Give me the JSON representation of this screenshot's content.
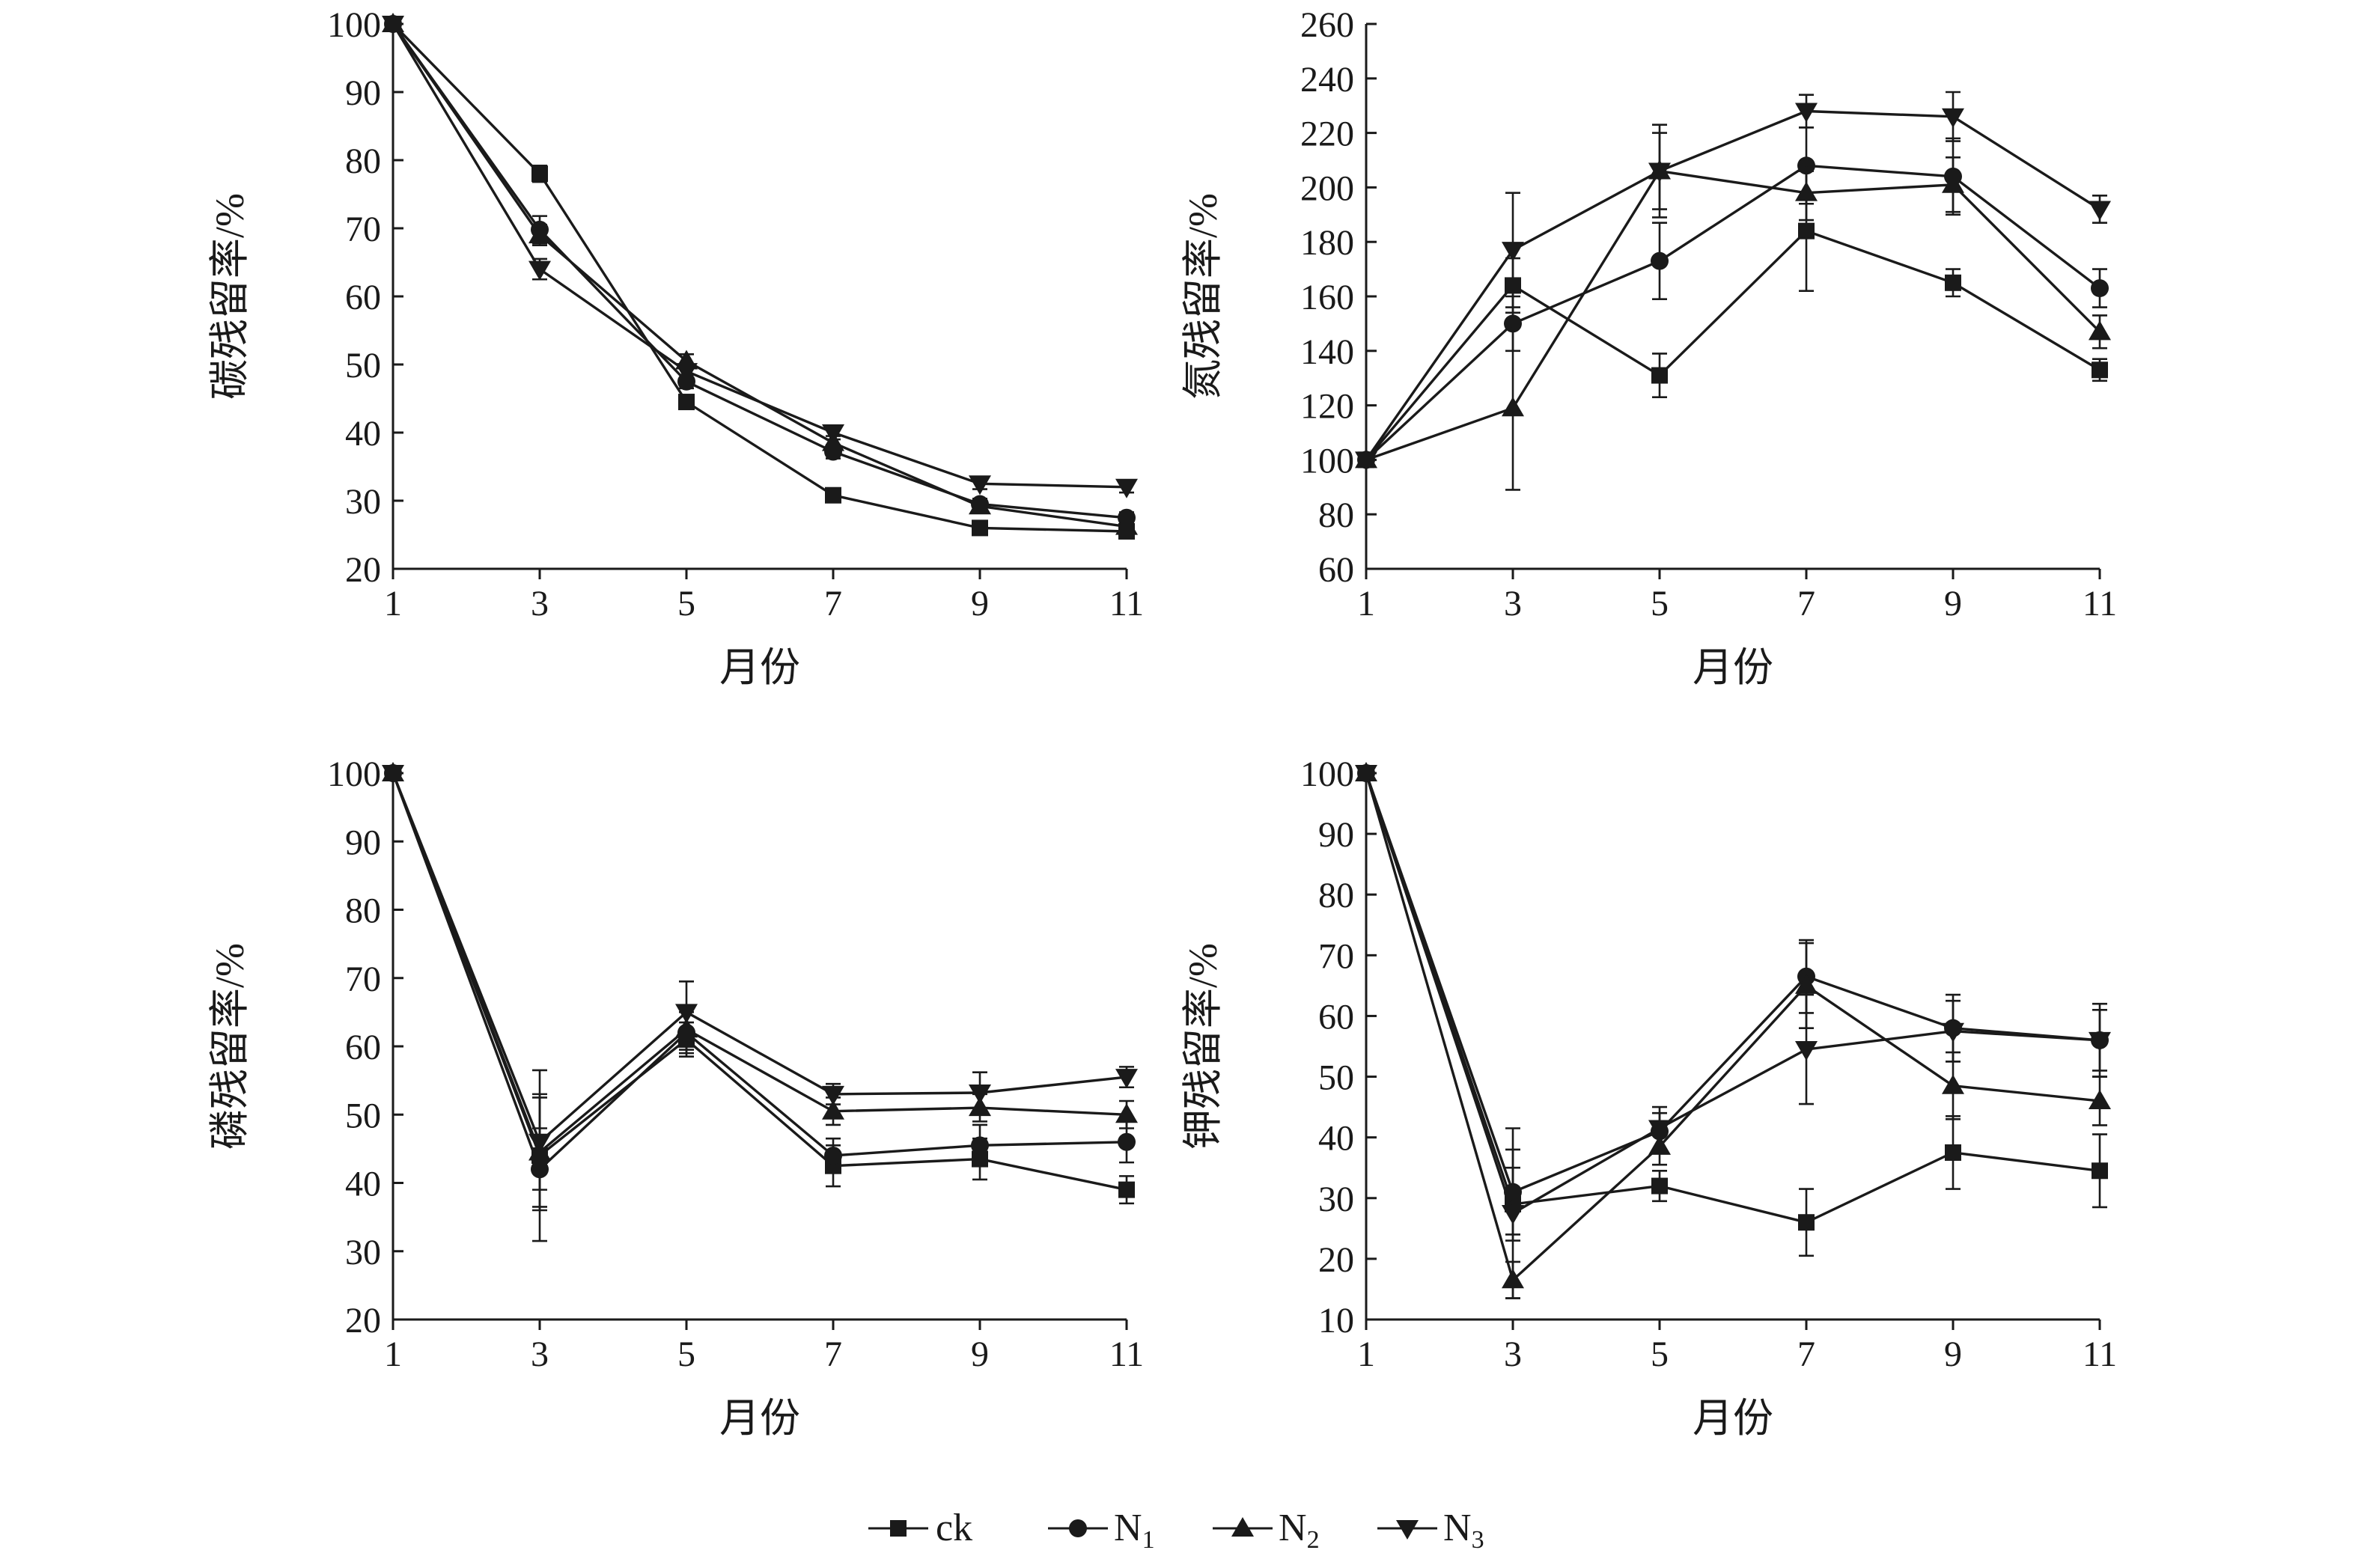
{
  "figure": {
    "legend": {
      "items": [
        {
          "label": "ck",
          "sub": "",
          "marker": "square"
        },
        {
          "label": "N",
          "sub": "1",
          "marker": "circle"
        },
        {
          "label": "N",
          "sub": "2",
          "marker": "triangle-up"
        },
        {
          "label": "N",
          "sub": "3",
          "marker": "triangle-down"
        }
      ]
    },
    "colors": {
      "ink": "#1a1a1a",
      "background": "#ffffff"
    }
  },
  "chart_data": [
    {
      "type": "line",
      "xlabel": "月份",
      "ylabel": "碳残留率/%",
      "x": [
        1,
        3,
        5,
        7,
        9,
        11
      ],
      "xticks": [
        1,
        3,
        5,
        7,
        9,
        11
      ],
      "xlim": [
        1,
        11
      ],
      "ylim": [
        20,
        100
      ],
      "yticks": [
        20,
        30,
        40,
        50,
        60,
        70,
        80,
        90,
        100
      ],
      "grid": false,
      "series": [
        {
          "name": "ck",
          "marker": "square",
          "values": [
            100,
            78,
            44.5,
            30.8,
            26,
            25.5
          ],
          "errors": [
            0,
            1.2,
            1.0,
            0.8,
            0.8,
            0.8
          ]
        },
        {
          "name": "N1",
          "marker": "circle",
          "values": [
            100,
            69.8,
            47.5,
            37.2,
            29.5,
            27.5
          ],
          "errors": [
            0,
            2.0,
            1.0,
            1.0,
            0.8,
            0.8
          ]
        },
        {
          "name": "N2",
          "marker": "triangle-up",
          "values": [
            100,
            69,
            50.5,
            38.5,
            29.2,
            26.2
          ],
          "errors": [
            0,
            1.5,
            1.0,
            1.0,
            0.8,
            0.8
          ]
        },
        {
          "name": "N3",
          "marker": "triangle-down",
          "values": [
            100,
            64,
            49,
            40,
            32.5,
            32
          ],
          "errors": [
            0,
            1.5,
            1.0,
            1.0,
            0.8,
            0.8
          ]
        }
      ]
    },
    {
      "type": "line",
      "xlabel": "月份",
      "ylabel": "氮残留率/%",
      "x": [
        1,
        3,
        5,
        7,
        9,
        11
      ],
      "xticks": [
        1,
        3,
        5,
        7,
        9,
        11
      ],
      "xlim": [
        1,
        11
      ],
      "ylim": [
        60,
        260
      ],
      "yticks": [
        60,
        80,
        100,
        120,
        140,
        160,
        180,
        200,
        220,
        240,
        260
      ],
      "grid": false,
      "series": [
        {
          "name": "ck",
          "marker": "square",
          "values": [
            100,
            164,
            131,
            184,
            165,
            133
          ],
          "errors": [
            0,
            10,
            8,
            22,
            5,
            4
          ]
        },
        {
          "name": "N1",
          "marker": "circle",
          "values": [
            100,
            150,
            173,
            208,
            204,
            163
          ],
          "errors": [
            0,
            10,
            14,
            14,
            14,
            7
          ]
        },
        {
          "name": "N2",
          "marker": "triangle-up",
          "values": [
            100,
            119,
            206,
            198,
            201,
            147
          ],
          "errors": [
            0,
            30,
            14,
            10,
            10,
            6
          ]
        },
        {
          "name": "N3",
          "marker": "triangle-down",
          "values": [
            100,
            177,
            206,
            228,
            226,
            192
          ],
          "errors": [
            0,
            21,
            17,
            6,
            9,
            5
          ]
        }
      ]
    },
    {
      "type": "line",
      "xlabel": "月份",
      "ylabel": "磷残留率/%",
      "x": [
        1,
        3,
        5,
        7,
        9,
        11
      ],
      "xticks": [
        1,
        3,
        5,
        7,
        9,
        11
      ],
      "xlim": [
        1,
        11
      ],
      "ylim": [
        20,
        100
      ],
      "yticks": [
        20,
        30,
        40,
        50,
        60,
        70,
        80,
        90,
        100
      ],
      "grid": false,
      "series": [
        {
          "name": "ck",
          "marker": "square",
          "values": [
            100,
            44,
            61,
            42.5,
            43.5,
            39
          ],
          "errors": [
            0,
            12.5,
            2.5,
            3.0,
            3.0,
            2.0
          ]
        },
        {
          "name": "N1",
          "marker": "circle",
          "values": [
            100,
            42,
            62,
            44,
            45.5,
            46
          ],
          "errors": [
            0,
            6.0,
            3.0,
            2.5,
            3.0,
            3.0
          ]
        },
        {
          "name": "N2",
          "marker": "triangle-up",
          "values": [
            100,
            44.5,
            62.5,
            50.5,
            51,
            50
          ],
          "errors": [
            0,
            8.0,
            3.0,
            2.0,
            2.0,
            2.0
          ]
        },
        {
          "name": "N3",
          "marker": "triangle-down",
          "values": [
            100,
            46,
            65,
            53,
            53.2,
            55.5
          ],
          "errors": [
            0,
            7.0,
            4.5,
            1.5,
            3.0,
            1.5
          ]
        }
      ]
    },
    {
      "type": "line",
      "xlabel": "月份",
      "ylabel": "钾残留率/%",
      "x": [
        1,
        3,
        5,
        7,
        9,
        11
      ],
      "xticks": [
        1,
        3,
        5,
        7,
        9,
        11
      ],
      "xlim": [
        1,
        11
      ],
      "ylim": [
        10,
        100
      ],
      "yticks": [
        10,
        20,
        30,
        40,
        50,
        60,
        70,
        80,
        90,
        100
      ],
      "grid": false,
      "series": [
        {
          "name": "ck",
          "marker": "square",
          "values": [
            100,
            29,
            32,
            26,
            37.5,
            34.5
          ],
          "errors": [
            0,
            6.0,
            2.5,
            5.5,
            6.0,
            6.0
          ]
        },
        {
          "name": "N1",
          "marker": "circle",
          "values": [
            100,
            31,
            41,
            66.5,
            58,
            56
          ],
          "errors": [
            0,
            7.0,
            3.0,
            6.0,
            5.5,
            5.0
          ]
        },
        {
          "name": "N2",
          "marker": "triangle-up",
          "values": [
            100,
            16.5,
            38.5,
            65,
            48.5,
            46
          ],
          "errors": [
            0,
            3.0,
            3.0,
            7.0,
            5.5,
            4.0
          ]
        },
        {
          "name": "N3",
          "marker": "triangle-down",
          "values": [
            100,
            27.5,
            41.5,
            54.5,
            57.5,
            56
          ],
          "errors": [
            0,
            14.0,
            3.5,
            9.0,
            5.0,
            6.0
          ]
        }
      ]
    }
  ]
}
